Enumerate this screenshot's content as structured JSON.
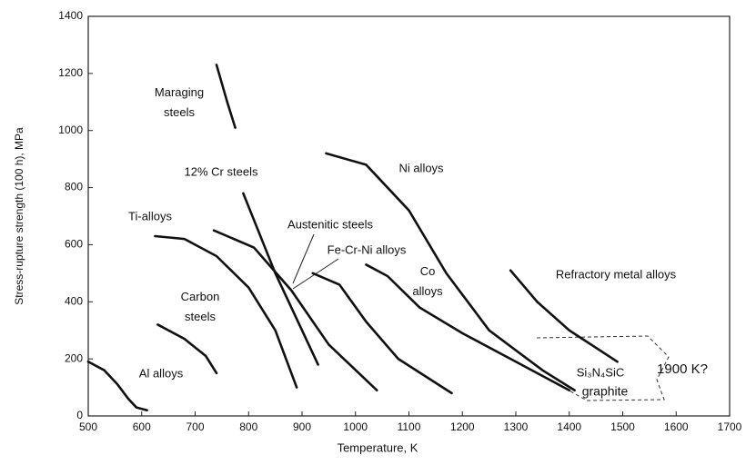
{
  "chart_data": {
    "type": "line",
    "x_label": "Temperature, K",
    "y_label": "Stress-rupture strength (100 h), MPa",
    "xlim": [
      500,
      1700
    ],
    "xticks": [
      500,
      600,
      700,
      800,
      900,
      1000,
      1100,
      1200,
      1300,
      1400,
      1500,
      1600,
      1700
    ],
    "ylim": [
      0,
      1400
    ],
    "yticks": [
      0,
      200,
      400,
      600,
      800,
      1000,
      1200,
      1400
    ],
    "grid": false,
    "series": [
      {
        "name": "Al alloys",
        "color": "#111111",
        "x": [
          500,
          530,
          555,
          575,
          590,
          610
        ],
        "values": [
          190,
          160,
          110,
          60,
          30,
          20
        ]
      },
      {
        "name": "Carbon steels",
        "color": "#111111",
        "x": [
          630,
          680,
          720,
          740
        ],
        "values": [
          320,
          270,
          210,
          150
        ]
      },
      {
        "name": "Ti-alloys",
        "color": "#111111",
        "x": [
          625,
          680,
          740,
          800,
          850,
          890
        ],
        "values": [
          630,
          620,
          560,
          450,
          300,
          100
        ]
      },
      {
        "name": "Maraging steels",
        "color": "#111111",
        "x": [
          740,
          760,
          775
        ],
        "values": [
          1230,
          1100,
          1010
        ]
      },
      {
        "name": "12% Cr steels",
        "color": "#111111",
        "x": [
          790,
          850,
          900,
          930
        ],
        "values": [
          780,
          500,
          300,
          180
        ]
      },
      {
        "name": "Austenitic steels",
        "color": "#111111",
        "x": [
          735,
          810,
          880,
          950,
          1040
        ],
        "values": [
          650,
          590,
          440,
          250,
          90
        ]
      },
      {
        "name": "Fe-Cr-Ni alloys",
        "color": "#111111",
        "x": [
          920,
          970,
          1020,
          1080,
          1180
        ],
        "values": [
          500,
          460,
          330,
          200,
          80
        ]
      },
      {
        "name": "Co alloys",
        "color": "#111111",
        "x": [
          1020,
          1060,
          1120,
          1200,
          1300,
          1400
        ],
        "values": [
          530,
          490,
          380,
          290,
          190,
          90
        ]
      },
      {
        "name": "Ni alloys",
        "color": "#111111",
        "x": [
          945,
          1020,
          1100,
          1170,
          1250,
          1350,
          1410
        ],
        "values": [
          920,
          880,
          720,
          500,
          300,
          160,
          90
        ]
      },
      {
        "name": "Refractory metal alloys",
        "color": "#111111",
        "x": [
          1290,
          1340,
          1400,
          1490
        ],
        "values": [
          510,
          400,
          300,
          190
        ]
      }
    ],
    "annotations": [
      "Si₃N₄SiC",
      "graphite",
      "1900 K?"
    ]
  }
}
